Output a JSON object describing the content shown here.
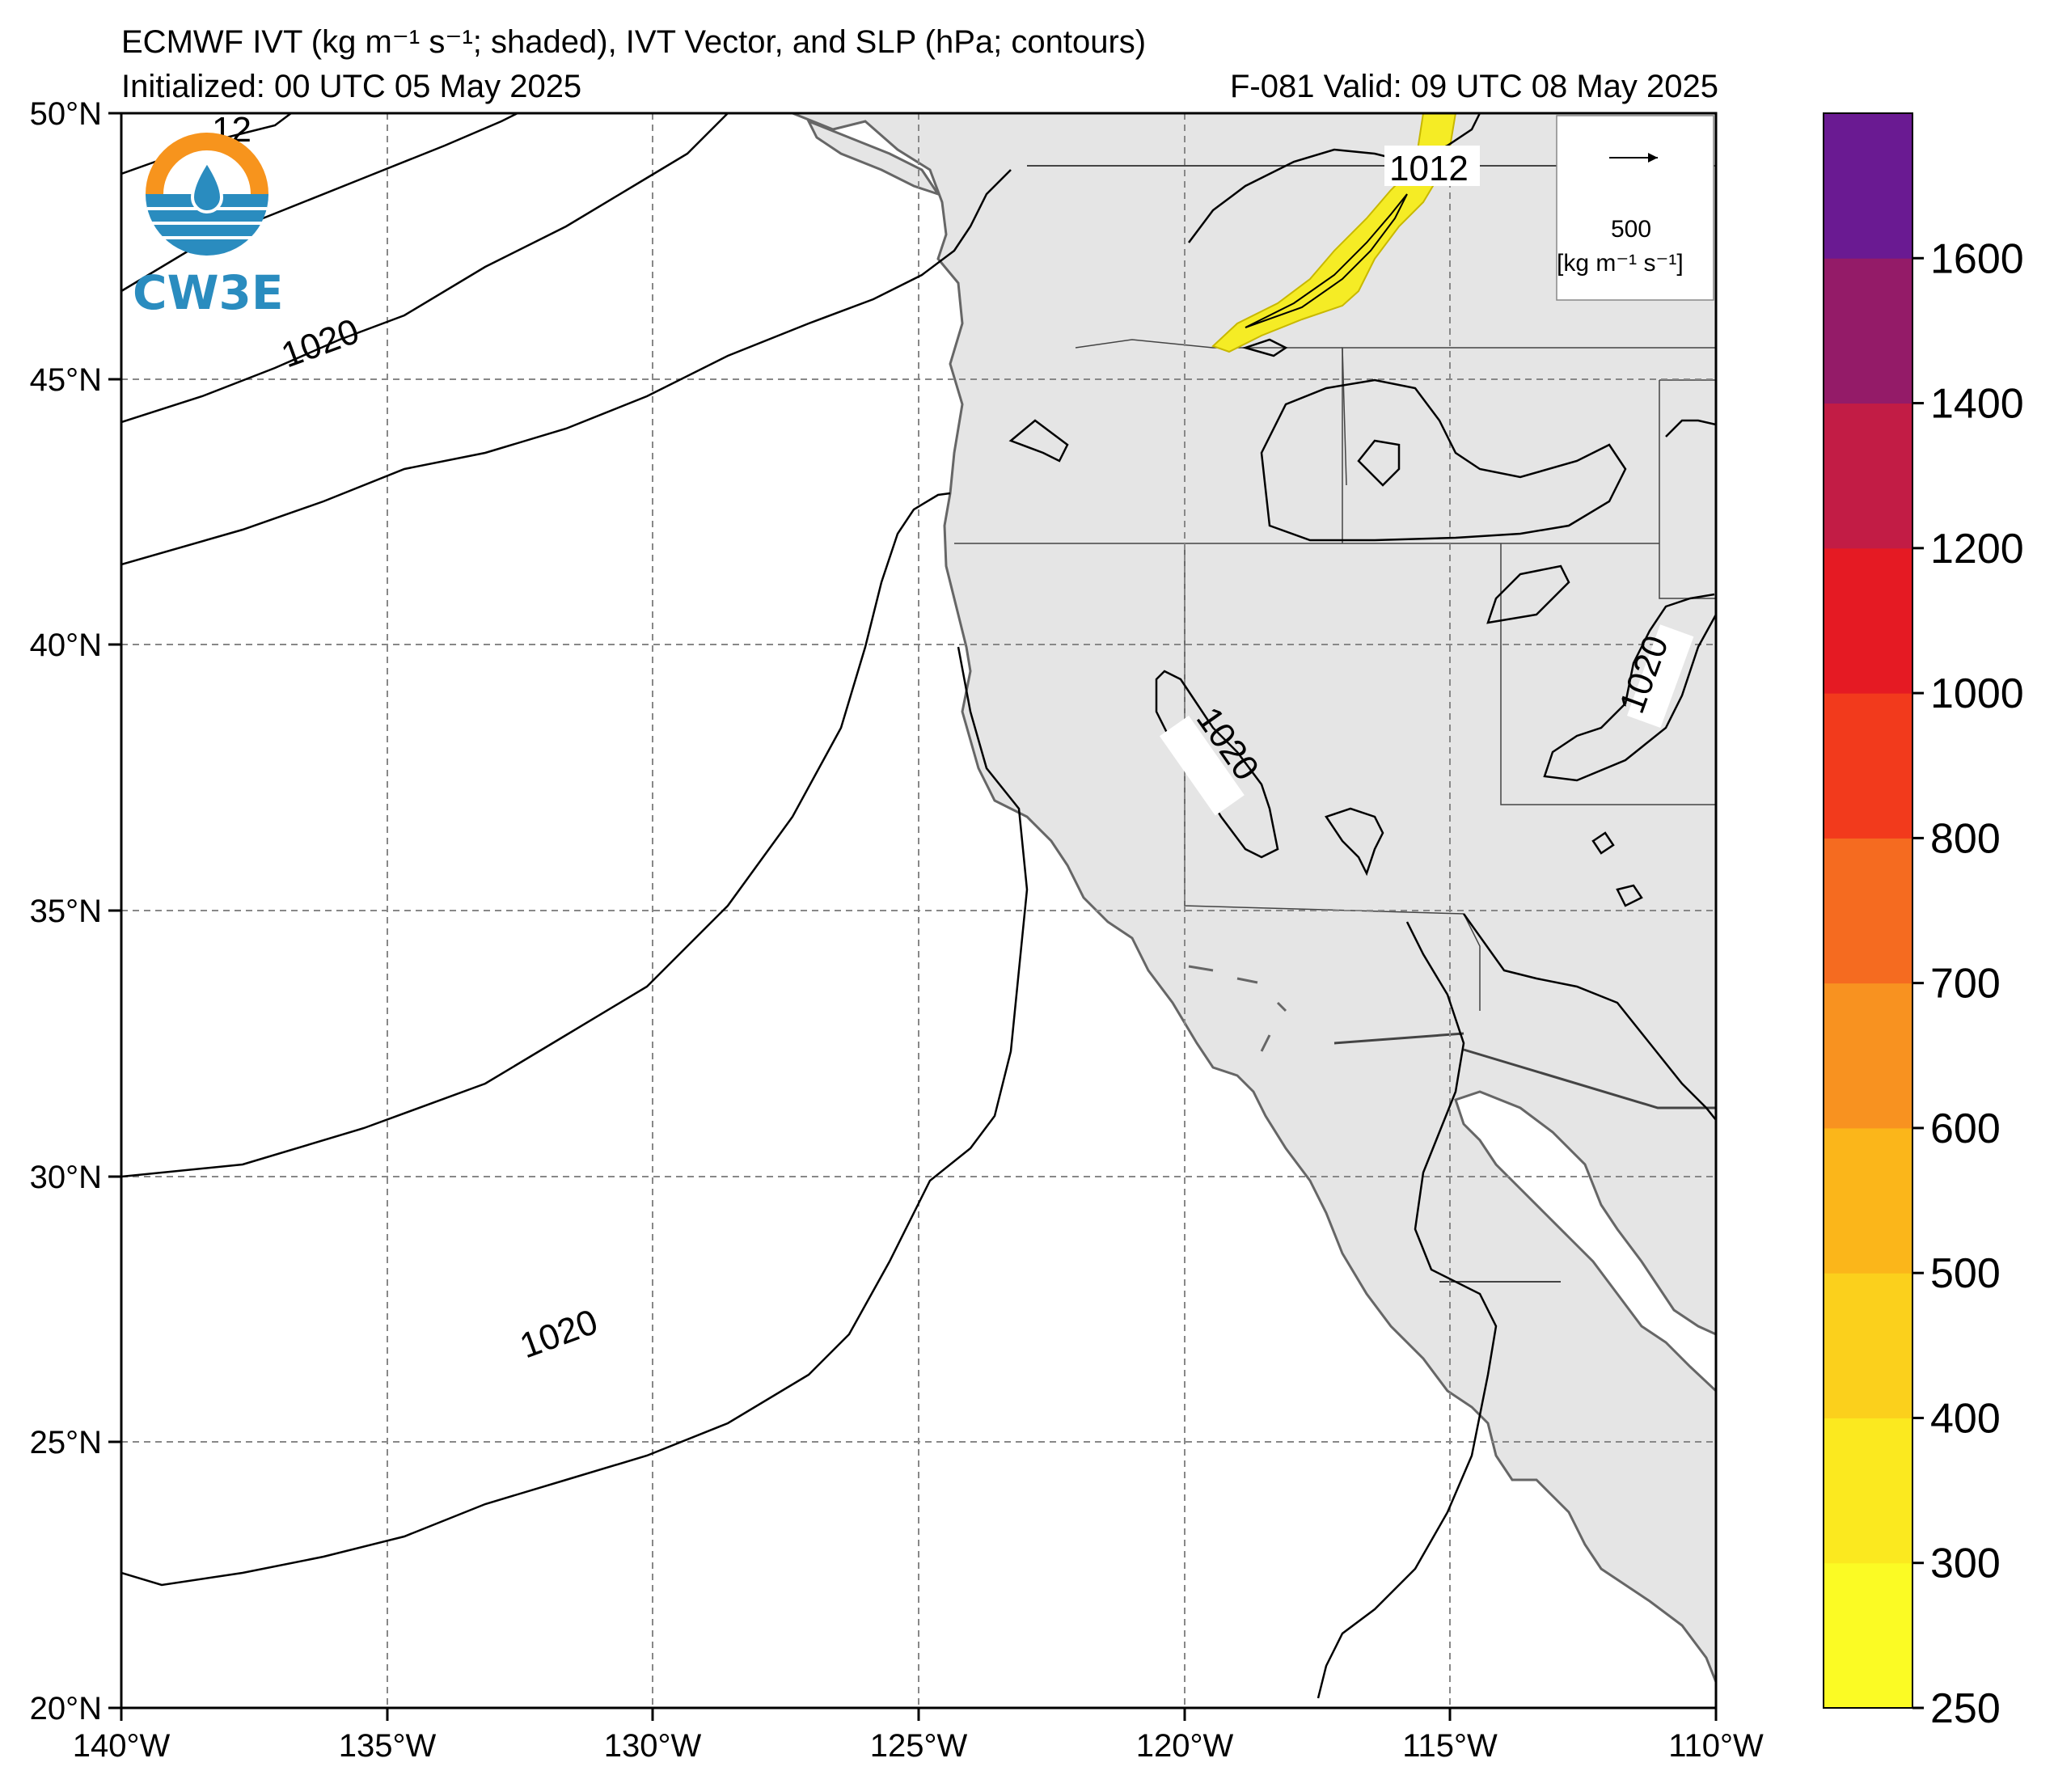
{
  "title": {
    "line1": "ECMWF IVT (kg m⁻¹ s⁻¹; shaded), IVT Vector, and SLP (hPa; contours)",
    "line2_left": "Initialized: 00 UTC 05 May 2025",
    "line2_right": "F-081  Valid: 09 UTC 08 May 2025"
  },
  "logo": {
    "text": "CW3E"
  },
  "map": {
    "lon_range": [
      -140,
      -110
    ],
    "lat_range": [
      20,
      50
    ],
    "lon_ticks": [
      "140°W",
      "135°W",
      "130°W",
      "125°W",
      "120°W",
      "115°W",
      "110°W"
    ],
    "lat_ticks": [
      "50°N",
      "45°N",
      "40°N",
      "35°N",
      "30°N",
      "25°N",
      "20°N"
    ],
    "grid": true,
    "land_color": "#e5e5e5",
    "coast_color": "#666666",
    "ivt_plume_color": "#f5ec25",
    "contour_labels": [
      "1012",
      "1020",
      "1020",
      "1020",
      "1020"
    ],
    "corner_label_partial": "12"
  },
  "vector_legend": {
    "value": "500",
    "units": "[kg m⁻¹ s⁻¹]"
  },
  "colorbar": {
    "levels": [
      250,
      300,
      400,
      500,
      600,
      700,
      800,
      1000,
      1200,
      1400,
      1600
    ],
    "labels": [
      "250",
      "300",
      "400",
      "500",
      "600",
      "700",
      "800",
      "1000",
      "1200",
      "1400",
      "1600"
    ],
    "colors": [
      "#fbfb24",
      "#fbe91f",
      "#fbd01c",
      "#fbb61a",
      "#f89220",
      "#f56b20",
      "#f23a1c",
      "#e51a23",
      "#c21c45",
      "#941b68",
      "#6a1a92"
    ]
  }
}
